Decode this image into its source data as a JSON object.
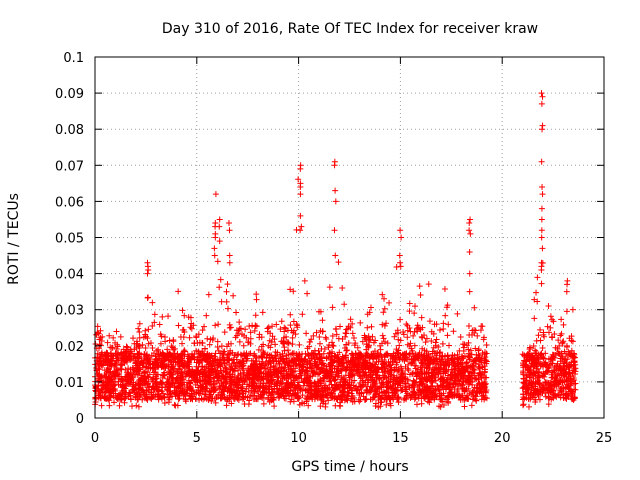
{
  "chart_data": {
    "type": "scatter",
    "title": "Day 310 of 2016, Rate Of TEC Index for receiver kraw",
    "xlabel": "GPS time / hours",
    "ylabel": "ROTI / TECUs",
    "xlim": [
      0,
      25
    ],
    "ylim": [
      0,
      0.1
    ],
    "grid": true,
    "marker": "+",
    "series_color": "#ff0000",
    "x_ticks": [
      "0",
      "5",
      "10",
      "15",
      "20",
      "25"
    ],
    "y_ticks": [
      "0",
      "0.01",
      "0.02",
      "0.03",
      "0.04",
      "0.05",
      "0.06",
      "0.07",
      "0.08",
      "0.09",
      "0.1"
    ],
    "coverage": [
      {
        "from": 0.0,
        "to": 19.25
      },
      {
        "from": 21.0,
        "to": 23.6
      }
    ],
    "envelope": {
      "x": [
        0.0,
        0.5,
        1.0,
        1.5,
        2.0,
        2.5,
        2.7,
        3.0,
        3.5,
        4.0,
        4.5,
        5.0,
        5.5,
        5.9,
        6.2,
        6.5,
        7.0,
        7.5,
        8.0,
        8.5,
        9.0,
        9.5,
        10.0,
        10.3,
        10.6,
        11.0,
        11.5,
        11.8,
        12.2,
        12.6,
        13.0,
        13.5,
        14.0,
        14.5,
        14.9,
        15.3,
        15.7,
        16.0,
        16.5,
        17.0,
        17.5,
        18.0,
        18.4,
        18.8,
        19.25,
        21.0,
        21.5,
        21.9,
        22.3,
        22.8,
        23.3,
        23.6
      ],
      "y": [
        0.027,
        0.022,
        0.026,
        0.02,
        0.024,
        0.03,
        0.042,
        0.027,
        0.031,
        0.036,
        0.031,
        0.025,
        0.032,
        0.061,
        0.04,
        0.043,
        0.027,
        0.025,
        0.037,
        0.026,
        0.028,
        0.03,
        0.07,
        0.038,
        0.029,
        0.032,
        0.034,
        0.071,
        0.034,
        0.03,
        0.042,
        0.031,
        0.034,
        0.037,
        0.052,
        0.035,
        0.039,
        0.037,
        0.038,
        0.04,
        0.032,
        0.032,
        0.055,
        0.03,
        0.021,
        0.018,
        0.022,
        0.09,
        0.03,
        0.025,
        0.038,
        0.025
      ]
    },
    "spikes": [
      {
        "x": 2.6,
        "y": [
          0.043,
          0.042,
          0.041,
          0.04
        ]
      },
      {
        "x": 5.9,
        "y": [
          0.062,
          0.054,
          0.053,
          0.051,
          0.05,
          0.047,
          0.045
        ]
      },
      {
        "x": 6.1,
        "y": [
          0.055,
          0.053,
          0.049
        ]
      },
      {
        "x": 6.6,
        "y": [
          0.054,
          0.052,
          0.045,
          0.043
        ]
      },
      {
        "x": 10.1,
        "y": [
          0.07,
          0.069,
          0.065,
          0.064,
          0.062,
          0.056,
          0.053,
          0.052
        ]
      },
      {
        "x": 10.3,
        "y": [
          0.038
        ]
      },
      {
        "x": 11.8,
        "y": [
          0.071,
          0.07,
          0.063,
          0.06,
          0.052,
          0.045
        ]
      },
      {
        "x": 15.0,
        "y": [
          0.052,
          0.05,
          0.045,
          0.043
        ]
      },
      {
        "x": 18.4,
        "y": [
          0.055,
          0.054,
          0.052,
          0.051,
          0.046,
          0.04,
          0.035
        ]
      },
      {
        "x": 21.95,
        "y": [
          0.09,
          0.089,
          0.087,
          0.081,
          0.08,
          0.071,
          0.064,
          0.062,
          0.058,
          0.055,
          0.052,
          0.05,
          0.047,
          0.043,
          0.042,
          0.041
        ]
      },
      {
        "x": 23.2,
        "y": [
          0.038,
          0.037,
          0.035
        ]
      }
    ]
  }
}
